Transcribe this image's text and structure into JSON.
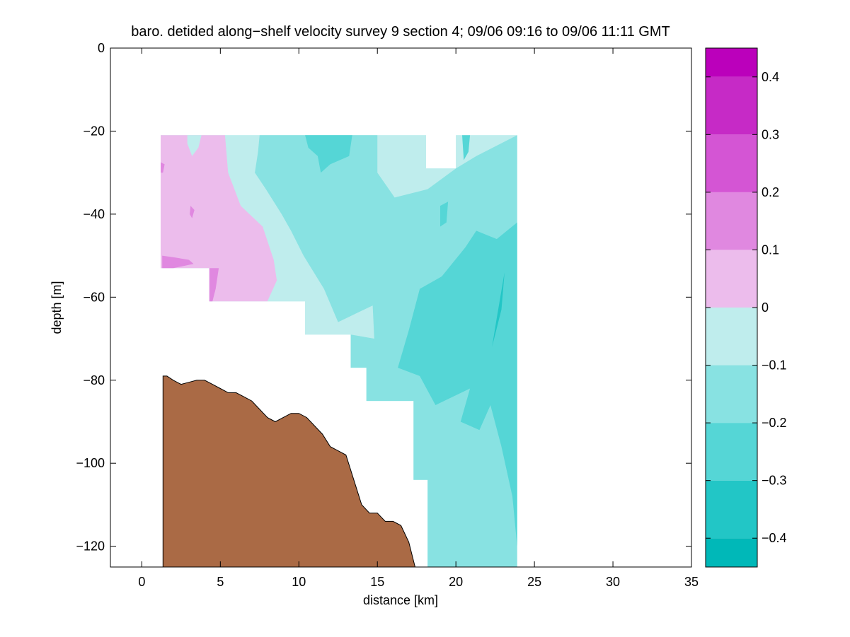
{
  "chart_data": {
    "type": "contour",
    "title": "baro. detided along−shelf velocity survey 9 section 4; 09/06 09:16 to 09/06 11:11 GMT",
    "xlabel": "distance [km]",
    "ylabel": "depth [m]",
    "xlim": [
      -2,
      35
    ],
    "ylim": [
      -125,
      0
    ],
    "x_ticks": [
      0,
      5,
      10,
      15,
      20,
      25,
      30,
      35
    ],
    "x_tick_labels": [
      "0",
      "5",
      "10",
      "15",
      "20",
      "25",
      "30",
      "35"
    ],
    "y_ticks": [
      0,
      -20,
      -40,
      -60,
      -80,
      -100,
      -120
    ],
    "y_tick_labels": [
      "0",
      "−20",
      "−40",
      "−60",
      "−80",
      "−100",
      "−120"
    ],
    "grid": false,
    "colorbar": {
      "range": [
        -0.45,
        0.45
      ],
      "levels": [
        -0.45,
        -0.4,
        -0.3,
        -0.2,
        -0.1,
        0,
        0.1,
        0.2,
        0.3,
        0.4,
        0.45
      ],
      "colors": [
        "#00b8b8",
        "#22c6c6",
        "#55d6d6",
        "#88e2e2",
        "#bfeded",
        "#ecbcec",
        "#e088e0",
        "#d455d4",
        "#c62ac6",
        "#bb00bb"
      ],
      "tick_values": [
        0.4,
        0.3,
        0.2,
        0.1,
        0,
        -0.1,
        -0.2,
        -0.3,
        -0.4
      ],
      "tick_labels": [
        "0.4",
        "0.3",
        "0.2",
        "0.1",
        "0",
        "−0.1",
        "−0.2",
        "−0.3",
        "−0.4"
      ]
    },
    "bottom_color": "#aa6a45",
    "bathymetry": [
      [
        1.35,
        -79
      ],
      [
        1.6,
        -79
      ],
      [
        2.0,
        -80
      ],
      [
        2.5,
        -81
      ],
      [
        3.0,
        -80.5
      ],
      [
        3.5,
        -80
      ],
      [
        4.0,
        -80
      ],
      [
        4.5,
        -81
      ],
      [
        5.0,
        -82
      ],
      [
        5.5,
        -83
      ],
      [
        6.0,
        -83
      ],
      [
        6.5,
        -84
      ],
      [
        7.0,
        -85
      ],
      [
        7.5,
        -87
      ],
      [
        8.0,
        -89
      ],
      [
        8.5,
        -90
      ],
      [
        9.0,
        -89
      ],
      [
        9.5,
        -88
      ],
      [
        10.0,
        -88
      ],
      [
        10.5,
        -89
      ],
      [
        11.0,
        -91
      ],
      [
        11.5,
        -93
      ],
      [
        12.0,
        -96
      ],
      [
        12.5,
        -97
      ],
      [
        13.0,
        -98
      ],
      [
        13.5,
        -104
      ],
      [
        14.0,
        -110
      ],
      [
        14.5,
        -112
      ],
      [
        15.0,
        -112
      ],
      [
        15.5,
        -114
      ],
      [
        16.0,
        -114
      ],
      [
        16.5,
        -115
      ],
      [
        17.0,
        -119
      ],
      [
        17.4,
        -125
      ]
    ],
    "data_mask": [
      [
        1.2,
        -21
      ],
      [
        18.1,
        -21
      ],
      [
        18.1,
        -29
      ],
      [
        20.0,
        -29
      ],
      [
        20.0,
        -21
      ],
      [
        23.9,
        -21
      ],
      [
        23.9,
        -125
      ],
      [
        18.2,
        -125
      ],
      [
        18.2,
        -104
      ],
      [
        17.3,
        -104
      ],
      [
        17.3,
        -85
      ],
      [
        14.3,
        -85
      ],
      [
        14.3,
        -77
      ],
      [
        13.3,
        -77
      ],
      [
        13.3,
        -69
      ],
      [
        10.4,
        -69
      ],
      [
        10.4,
        -61
      ],
      [
        4.3,
        -61
      ],
      [
        4.3,
        -53
      ],
      [
        1.2,
        -53
      ]
    ],
    "contour_regions": [
      {
        "level_range": [
          0,
          0.1
        ],
        "polygon": [
          [
            1.2,
            -21
          ],
          [
            5.3,
            -21
          ],
          [
            5.5,
            -30
          ],
          [
            6.3,
            -38
          ],
          [
            7.7,
            -43
          ],
          [
            8.4,
            -51
          ],
          [
            8.6,
            -56
          ],
          [
            8.0,
            -61
          ],
          [
            4.3,
            -61
          ],
          [
            4.3,
            -53
          ],
          [
            1.2,
            -53
          ]
        ]
      },
      {
        "level_range": [
          0.1,
          0.2
        ],
        "polygon": [
          [
            1.3,
            -50
          ],
          [
            2.2,
            -50.5
          ],
          [
            3.0,
            -51
          ],
          [
            3.3,
            -52
          ],
          [
            2.0,
            -53
          ],
          [
            1.3,
            -53
          ]
        ]
      },
      {
        "level_range": [
          0.1,
          0.2
        ],
        "polygon": [
          [
            4.3,
            -53
          ],
          [
            4.9,
            -53
          ],
          [
            4.7,
            -58
          ],
          [
            4.5,
            -61
          ],
          [
            4.3,
            -61
          ]
        ]
      },
      {
        "level_range": [
          0.1,
          0.2
        ],
        "polygon": [
          [
            1.2,
            -27.5
          ],
          [
            1.45,
            -28
          ],
          [
            1.35,
            -30
          ],
          [
            1.2,
            -30
          ]
        ]
      },
      {
        "level_range": [
          0.1,
          0.2
        ],
        "polygon": [
          [
            3.1,
            -38
          ],
          [
            3.35,
            -39
          ],
          [
            3.2,
            -41
          ],
          [
            3.05,
            -40
          ]
        ]
      },
      {
        "level_range": [
          0.1,
          0.2
        ],
        "polygon": [
          [
            21.7,
            -27
          ],
          [
            22.2,
            -25
          ],
          [
            22.05,
            -29
          ],
          [
            21.85,
            -29.5
          ]
        ]
      },
      {
        "level_range": [
          -0.1,
          0
        ],
        "polygon": [
          [
            2.9,
            -21
          ],
          [
            3.8,
            -21
          ],
          [
            3.6,
            -24
          ],
          [
            3.2,
            -26
          ],
          [
            2.9,
            -23
          ]
        ]
      },
      {
        "level_range": [
          -0.1,
          0
        ],
        "polygon": [
          [
            5.3,
            -21
          ],
          [
            18.1,
            -21
          ],
          [
            18.1,
            -29
          ],
          [
            20.0,
            -29
          ],
          [
            20.0,
            -21
          ],
          [
            23.9,
            -21
          ],
          [
            23.9,
            -28
          ],
          [
            22.5,
            -33
          ],
          [
            21.3,
            -36
          ],
          [
            18.2,
            -42
          ],
          [
            16.2,
            -48
          ],
          [
            16.1,
            -60
          ],
          [
            14.7,
            -62
          ],
          [
            14.8,
            -70
          ],
          [
            13.3,
            -69
          ],
          [
            10.4,
            -69
          ],
          [
            10.4,
            -61
          ],
          [
            8.0,
            -61
          ],
          [
            8.6,
            -56
          ],
          [
            8.4,
            -51
          ],
          [
            7.7,
            -43
          ],
          [
            6.3,
            -38
          ],
          [
            5.5,
            -30
          ]
        ]
      },
      {
        "level_range": [
          -0.2,
          -0.1
        ],
        "polygon": [
          [
            7.5,
            -21
          ],
          [
            15.0,
            -21
          ],
          [
            15.0,
            -30
          ],
          [
            16.1,
            -36
          ],
          [
            18.2,
            -34
          ],
          [
            20.0,
            -29
          ],
          [
            21.3,
            -26
          ],
          [
            23.9,
            -21
          ],
          [
            23.9,
            -125
          ],
          [
            18.2,
            -125
          ],
          [
            18.2,
            -104
          ],
          [
            17.3,
            -104
          ],
          [
            17.3,
            -85
          ],
          [
            14.3,
            -85
          ],
          [
            14.3,
            -77
          ],
          [
            13.3,
            -77
          ],
          [
            13.3,
            -69
          ],
          [
            14.8,
            -70
          ],
          [
            14.7,
            -62
          ],
          [
            12.5,
            -66
          ],
          [
            11.6,
            -58
          ],
          [
            10.3,
            -50
          ],
          [
            9.5,
            -44
          ],
          [
            8.9,
            -40
          ],
          [
            7.9,
            -34
          ],
          [
            7.2,
            -30
          ],
          [
            7.4,
            -25
          ]
        ]
      },
      {
        "level_range": [
          -0.3,
          -0.2
        ],
        "polygon": [
          [
            10.4,
            -21
          ],
          [
            13.4,
            -21
          ],
          [
            13.2,
            -26
          ],
          [
            12.0,
            -28
          ],
          [
            11.4,
            -30
          ],
          [
            11.2,
            -26
          ],
          [
            10.6,
            -24
          ]
        ]
      },
      {
        "level_range": [
          -0.3,
          -0.2
        ],
        "polygon": [
          [
            20.4,
            -21
          ],
          [
            20.9,
            -21
          ],
          [
            20.8,
            -25
          ],
          [
            20.5,
            -27
          ]
        ]
      },
      {
        "level_range": [
          -0.3,
          -0.2
        ],
        "polygon": [
          [
            19.0,
            -38
          ],
          [
            19.5,
            -37
          ],
          [
            19.4,
            -42
          ],
          [
            19.0,
            -43
          ]
        ]
      },
      {
        "level_range": [
          -0.3,
          -0.2
        ],
        "polygon": [
          [
            23.9,
            -42
          ],
          [
            23.9,
            -120
          ],
          [
            23.6,
            -108
          ],
          [
            22.9,
            -96
          ],
          [
            22.2,
            -86
          ],
          [
            21.5,
            -92
          ],
          [
            20.3,
            -90
          ],
          [
            20.9,
            -82
          ],
          [
            18.7,
            -86
          ],
          [
            17.7,
            -79
          ],
          [
            16.3,
            -77
          ],
          [
            17.0,
            -68
          ],
          [
            17.7,
            -58
          ],
          [
            19.1,
            -55
          ],
          [
            20.6,
            -48
          ],
          [
            21.3,
            -44
          ],
          [
            22.6,
            -46
          ]
        ]
      },
      {
        "level_range": [
          -0.4,
          -0.3
        ],
        "polygon": [
          [
            22.6,
            -65
          ],
          [
            23.1,
            -54
          ],
          [
            22.9,
            -63
          ],
          [
            22.3,
            -72
          ]
        ]
      }
    ]
  }
}
